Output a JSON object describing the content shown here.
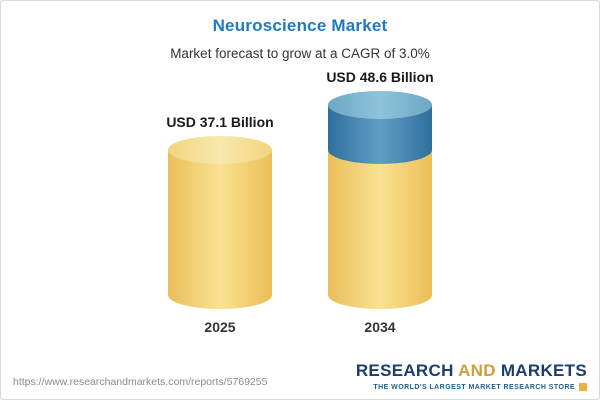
{
  "header": {
    "title": "Neuroscience Market",
    "subtitle": "Market forecast to grow at a CAGR of 3.0%"
  },
  "chart_data": {
    "type": "bar",
    "style": "3d-cylinder",
    "title": "Neuroscience Market",
    "subtitle": "Market forecast to grow at a CAGR of 3.0%",
    "cagr_percent": 3.0,
    "unit": "USD Billion",
    "categories": [
      "2025",
      "2034"
    ],
    "values": [
      37.1,
      48.6
    ],
    "value_labels": [
      "USD 37.1 Billion",
      "USD 48.6 Billion"
    ],
    "legend": "none",
    "grid": "off",
    "bars": [
      {
        "category": "2025",
        "segments": [
          {
            "value": 37.1,
            "color": "base"
          }
        ]
      },
      {
        "category": "2034",
        "segments": [
          {
            "value": 37.1,
            "color": "base"
          },
          {
            "value": 11.5,
            "color": "growth"
          }
        ]
      }
    ],
    "colors": {
      "base": {
        "edge": "#eabe57",
        "center": "#fae292",
        "top_edge": "#f2d47e",
        "top_center": "#f8e8ae"
      },
      "growth": {
        "edge": "#2f6f9d",
        "center": "#5f9fc4",
        "top_edge": "#6ea7c6",
        "top_center": "#8ec4da"
      }
    },
    "accent_title_color": "#1e7ac1"
  },
  "footer": {
    "url": "https://www.researchandmarkets.com/reports/5769255",
    "logo": {
      "word1": "RESEARCH",
      "word2": "AND",
      "word3": "MARKETS",
      "tagline": "THE WORLD'S LARGEST MARKET RESEARCH STORE"
    }
  }
}
